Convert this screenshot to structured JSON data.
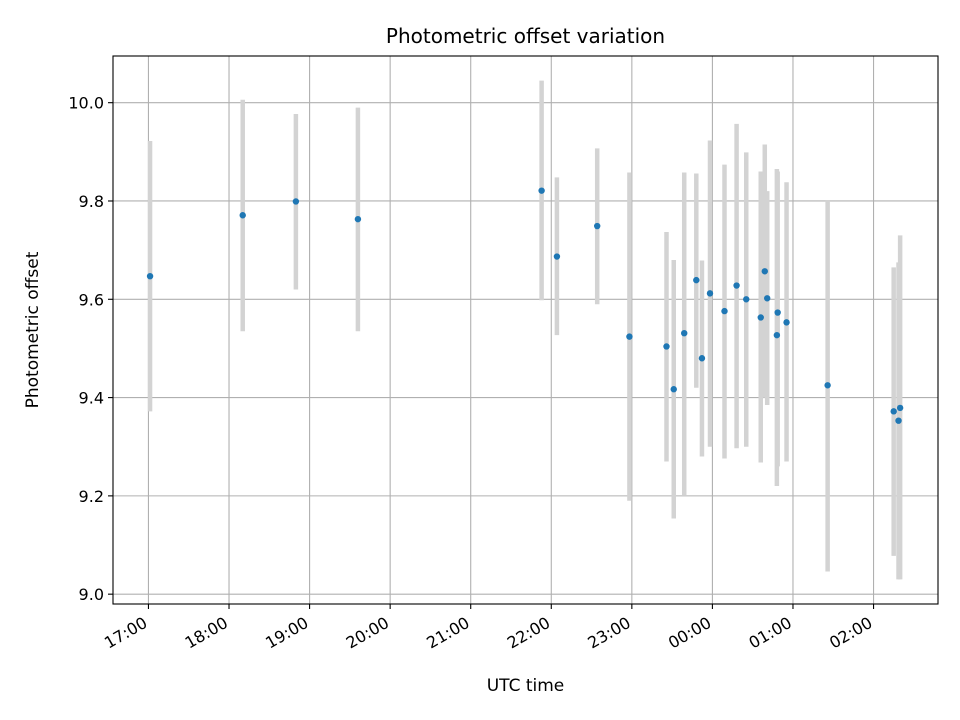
{
  "chart_data": {
    "type": "scatter",
    "title": "Photometric offset variation",
    "xlabel": "UTC time",
    "ylabel": "Photometric offset",
    "x_unit": "hour",
    "xlim": [
      16.56,
      26.8
    ],
    "ylim": [
      8.98,
      10.095
    ],
    "grid": true,
    "x_ticks": [
      {
        "value": 17,
        "label": "17:00"
      },
      {
        "value": 18,
        "label": "18:00"
      },
      {
        "value": 19,
        "label": "19:00"
      },
      {
        "value": 20,
        "label": "20:00"
      },
      {
        "value": 21,
        "label": "21:00"
      },
      {
        "value": 22,
        "label": "22:00"
      },
      {
        "value": 23,
        "label": "23:00"
      },
      {
        "value": 24,
        "label": "00:00"
      },
      {
        "value": 25,
        "label": "01:00"
      },
      {
        "value": 26,
        "label": "02:00"
      }
    ],
    "y_ticks": [
      {
        "value": 9.0,
        "label": "9.0"
      },
      {
        "value": 9.2,
        "label": "9.2"
      },
      {
        "value": 9.4,
        "label": "9.4"
      },
      {
        "value": 9.6,
        "label": "9.6"
      },
      {
        "value": 9.8,
        "label": "9.8"
      },
      {
        "value": 10.0,
        "label": "10.0"
      }
    ],
    "colors": {
      "marker": "#1f77b4",
      "errorbar": "#d3d3d3",
      "grid": "#b0b0b0"
    },
    "points": [
      {
        "x": 17.02,
        "y": 9.647,
        "ylo": 9.372,
        "yhi": 9.922
      },
      {
        "x": 18.17,
        "y": 9.771,
        "ylo": 9.535,
        "yhi": 10.006
      },
      {
        "x": 18.83,
        "y": 9.799,
        "ylo": 9.62,
        "yhi": 9.977
      },
      {
        "x": 19.6,
        "y": 9.763,
        "ylo": 9.535,
        "yhi": 9.99
      },
      {
        "x": 21.88,
        "y": 9.821,
        "ylo": 9.598,
        "yhi": 10.045
      },
      {
        "x": 22.07,
        "y": 9.687,
        "ylo": 9.527,
        "yhi": 9.848
      },
      {
        "x": 22.57,
        "y": 9.749,
        "ylo": 9.59,
        "yhi": 9.907
      },
      {
        "x": 22.97,
        "y": 9.524,
        "ylo": 9.19,
        "yhi": 9.858
      },
      {
        "x": 23.43,
        "y": 9.504,
        "ylo": 9.27,
        "yhi": 9.737
      },
      {
        "x": 23.52,
        "y": 9.417,
        "ylo": 9.154,
        "yhi": 9.68
      },
      {
        "x": 23.65,
        "y": 9.531,
        "ylo": 9.2,
        "yhi": 9.858
      },
      {
        "x": 23.8,
        "y": 9.639,
        "ylo": 9.42,
        "yhi": 9.856
      },
      {
        "x": 23.87,
        "y": 9.48,
        "ylo": 9.28,
        "yhi": 9.679
      },
      {
        "x": 23.97,
        "y": 9.612,
        "ylo": 9.3,
        "yhi": 9.923
      },
      {
        "x": 24.15,
        "y": 9.576,
        "ylo": 9.276,
        "yhi": 9.874
      },
      {
        "x": 24.3,
        "y": 9.628,
        "ylo": 9.297,
        "yhi": 9.957
      },
      {
        "x": 24.42,
        "y": 9.6,
        "ylo": 9.3,
        "yhi": 9.899
      },
      {
        "x": 24.6,
        "y": 9.563,
        "ylo": 9.268,
        "yhi": 9.86
      },
      {
        "x": 24.65,
        "y": 9.657,
        "ylo": 9.4,
        "yhi": 9.915
      },
      {
        "x": 24.68,
        "y": 9.602,
        "ylo": 9.385,
        "yhi": 9.82
      },
      {
        "x": 24.8,
        "y": 9.527,
        "ylo": 9.22,
        "yhi": 9.865
      },
      {
        "x": 24.81,
        "y": 9.573,
        "ylo": 9.26,
        "yhi": 9.86
      },
      {
        "x": 24.92,
        "y": 9.553,
        "ylo": 9.27,
        "yhi": 9.838
      },
      {
        "x": 25.43,
        "y": 9.425,
        "ylo": 9.046,
        "yhi": 9.802
      },
      {
        "x": 26.25,
        "y": 9.372,
        "ylo": 9.078,
        "yhi": 9.665
      },
      {
        "x": 26.31,
        "y": 9.353,
        "ylo": 9.03,
        "yhi": 9.675
      },
      {
        "x": 26.33,
        "y": 9.379,
        "ylo": 9.03,
        "yhi": 9.73
      }
    ]
  }
}
